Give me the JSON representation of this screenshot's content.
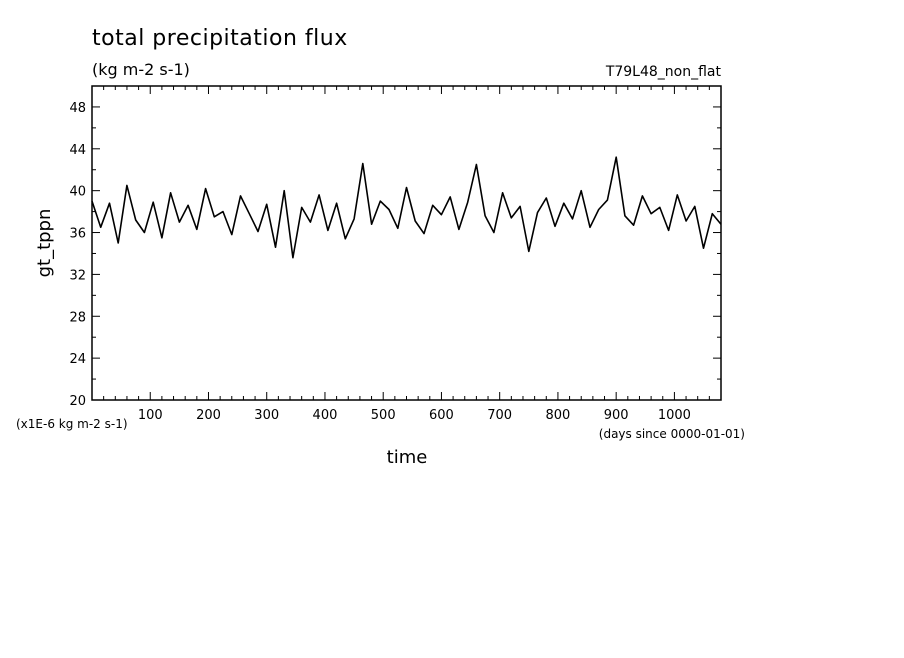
{
  "chart_data": {
    "type": "line",
    "title": "total precipitation flux",
    "units_label": "(kg m-2 s-1)",
    "run_label": "T79L48_non_flat",
    "xlabel": "time",
    "x_units": "(days since 0000-01-01)",
    "ylabel": "gt_tppn",
    "y_scale_label": "(x1E-6 kg m-2 s-1)",
    "xlim": [
      0,
      1080
    ],
    "ylim": [
      20,
      50
    ],
    "x_ticks": [
      "100",
      "200",
      "300",
      "400",
      "500",
      "600",
      "700",
      "800",
      "900",
      "1000"
    ],
    "y_ticks": [
      "20",
      "24",
      "28",
      "32",
      "36",
      "40",
      "44",
      "48"
    ],
    "grid": false,
    "line_color": "#000000",
    "x": [
      0,
      15,
      30,
      45,
      60,
      75,
      90,
      105,
      120,
      135,
      150,
      165,
      180,
      195,
      210,
      225,
      240,
      255,
      270,
      285,
      300,
      315,
      330,
      345,
      360,
      375,
      390,
      405,
      420,
      435,
      450,
      465,
      480,
      495,
      510,
      525,
      540,
      555,
      570,
      585,
      600,
      615,
      630,
      645,
      660,
      675,
      690,
      705,
      720,
      735,
      750,
      765,
      780,
      795,
      810,
      825,
      840,
      855,
      870,
      885,
      900,
      915,
      930,
      945,
      960,
      975,
      990,
      1005,
      1020,
      1035,
      1050,
      1065,
      1080
    ],
    "series": [
      {
        "values": [
          39.0,
          36.5,
          38.8,
          35.0,
          40.5,
          37.2,
          36.0,
          38.9,
          35.5,
          39.8,
          37.0,
          38.6,
          36.3,
          40.2,
          37.5,
          38.0,
          35.8,
          39.5,
          37.8,
          36.1,
          38.7,
          34.6,
          40.0,
          33.6,
          38.4,
          37.0,
          39.6,
          36.2,
          38.8,
          35.4,
          37.3,
          42.6,
          36.8,
          39.0,
          38.2,
          36.4,
          40.3,
          37.1,
          35.9,
          38.6,
          37.7,
          39.4,
          36.3,
          38.9,
          42.5,
          37.6,
          36.0,
          39.8,
          37.4,
          38.5,
          34.2,
          37.9,
          39.3,
          36.6,
          38.8,
          37.3,
          40.0,
          36.5,
          38.2,
          39.1,
          43.2,
          37.6,
          36.7,
          39.5,
          37.8,
          38.4,
          36.2,
          39.6,
          37.1,
          38.5,
          34.5,
          37.8,
          36.8
        ]
      }
    ]
  }
}
